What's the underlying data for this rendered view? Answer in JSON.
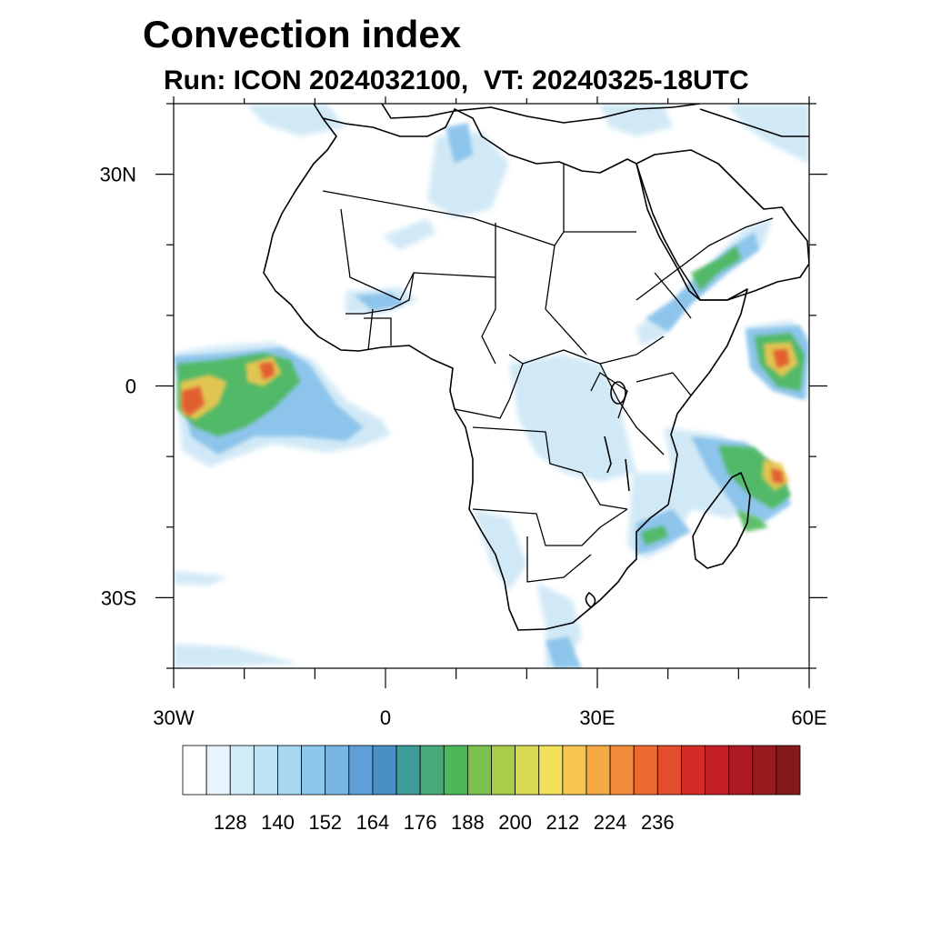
{
  "title": "Convection index",
  "subtitle": "Run: ICON 2024032100,  VT: 20240325-18UTC",
  "map": {
    "lon_range": [
      -30,
      60
    ],
    "lat_range": [
      -40,
      40
    ],
    "lon_labels": [
      {
        "lon": -30,
        "text": "30W"
      },
      {
        "lon": 0,
        "text": "0"
      },
      {
        "lon": 30,
        "text": "30E"
      },
      {
        "lon": 60,
        "text": "60E"
      }
    ],
    "lat_labels": [
      {
        "lat": 30,
        "text": "30N"
      },
      {
        "lat": 0,
        "text": "0"
      },
      {
        "lat": -30,
        "text": "30S"
      }
    ]
  },
  "colorbar": {
    "colors": [
      "#ffffff",
      "#e8f4fb",
      "#d2ebf8",
      "#bfe3f6",
      "#a6d8f2",
      "#8dc8ec",
      "#79b6e3",
      "#5f9fd8",
      "#4a8fc4",
      "#3f9a9a",
      "#47a878",
      "#4cb85a",
      "#7cc04e",
      "#a9cc4a",
      "#d6da50",
      "#f1e15a",
      "#f5c550",
      "#f5a943",
      "#f08c3a",
      "#ec6a30",
      "#e24d2c",
      "#d52b27",
      "#c41e27",
      "#ad1a23",
      "#981a1f",
      "#851a1b"
    ],
    "labels": [
      "128",
      "140",
      "152",
      "164",
      "176",
      "188",
      "200",
      "212",
      "224",
      "236"
    ]
  }
}
